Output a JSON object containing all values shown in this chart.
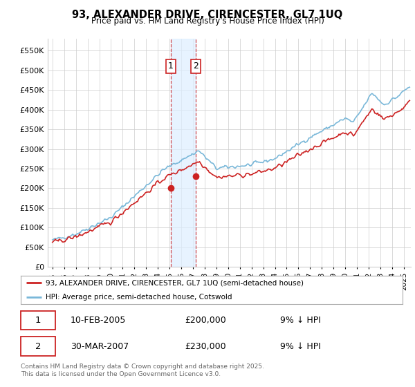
{
  "title": "93, ALEXANDER DRIVE, CIRENCESTER, GL7 1UQ",
  "subtitle": "Price paid vs. HM Land Registry's House Price Index (HPI)",
  "ylabel_values": [
    0,
    50000,
    100000,
    150000,
    200000,
    250000,
    300000,
    350000,
    400000,
    450000,
    500000,
    550000
  ],
  "ylim": [
    0,
    580000
  ],
  "xlim_start": 1994.6,
  "xlim_end": 2025.6,
  "background_color": "#ffffff",
  "grid_color": "#cccccc",
  "hpi_color": "#7ab8d9",
  "price_color": "#cc2222",
  "sale1_date_x": 2005.11,
  "sale1_price": 200000,
  "sale2_date_x": 2007.25,
  "sale2_price": 230000,
  "legend_line1": "93, ALEXANDER DRIVE, CIRENCESTER, GL7 1UQ (semi-detached house)",
  "legend_line2": "HPI: Average price, semi-detached house, Cotswold",
  "annotation1_label": "1",
  "annotation1_date": "10-FEB-2005",
  "annotation1_price": "£200,000",
  "annotation1_hpi": "9% ↓ HPI",
  "annotation2_label": "2",
  "annotation2_date": "30-MAR-2007",
  "annotation2_price": "£230,000",
  "annotation2_hpi": "9% ↓ HPI",
  "footer": "Contains HM Land Registry data © Crown copyright and database right 2025.\nThis data is licensed under the Open Government Licence v3.0.",
  "tick_years": [
    1995,
    1996,
    1997,
    1998,
    1999,
    2000,
    2001,
    2002,
    2003,
    2004,
    2005,
    2006,
    2007,
    2008,
    2009,
    2010,
    2011,
    2012,
    2013,
    2014,
    2015,
    2016,
    2017,
    2018,
    2019,
    2020,
    2021,
    2022,
    2023,
    2024,
    2025
  ]
}
